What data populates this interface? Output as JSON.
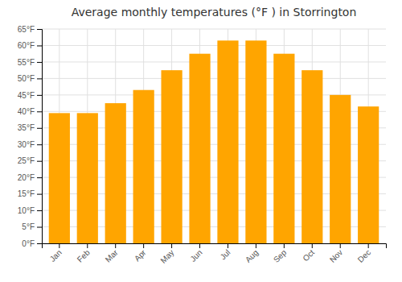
{
  "chart_data": {
    "type": "bar",
    "title": "Average monthly temperatures (°F ) in Storrington",
    "categories": [
      "Jan",
      "Feb",
      "Mar",
      "Apr",
      "May",
      "Jun",
      "Jul",
      "Aug",
      "Sep",
      "Oct",
      "Nov",
      "Dec"
    ],
    "values": [
      39.5,
      39.5,
      42.5,
      46.5,
      52.5,
      57.5,
      61.5,
      61.5,
      57.5,
      52.5,
      45.0,
      41.5
    ],
    "color": "#FFA500",
    "ylim": [
      0,
      65
    ],
    "yticks": [
      {
        "value": 0,
        "label": "0°F"
      },
      {
        "value": 5,
        "label": "5°F"
      },
      {
        "value": 10,
        "label": "10°F"
      },
      {
        "value": 15,
        "label": "15°F"
      },
      {
        "value": 20,
        "label": "20°F"
      },
      {
        "value": 25,
        "label": "25°F"
      },
      {
        "value": 30,
        "label": "30°F"
      },
      {
        "value": 35,
        "label": "35°F"
      },
      {
        "value": 40,
        "label": "40°F"
      },
      {
        "value": 45,
        "label": "45°F"
      },
      {
        "value": 50,
        "label": "50°F"
      },
      {
        "value": 55,
        "label": "55°F"
      },
      {
        "value": 60,
        "label": "60°F"
      },
      {
        "value": 65,
        "label": "65°F"
      }
    ],
    "grid": true
  }
}
